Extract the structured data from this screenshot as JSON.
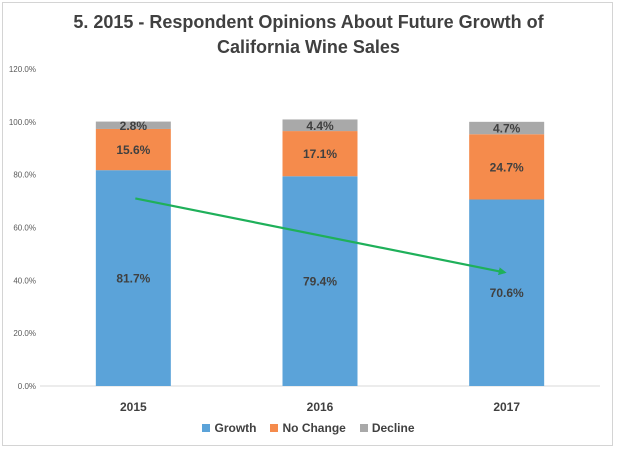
{
  "chart_data": {
    "type": "bar",
    "stacked": true,
    "title": "5.  2015 - Respondent Opinions About Future Growth of California Wine Sales",
    "title_lines": [
      "5.  2015 - Respondent Opinions About Future Growth of",
      "California Wine Sales"
    ],
    "categories": [
      "2015",
      "2016",
      "2017"
    ],
    "series": [
      {
        "name": "Growth",
        "values": [
          81.7,
          79.4,
          70.6
        ],
        "color": "#5ba3d9",
        "labels": [
          "81.7%",
          "79.4%",
          "70.6%"
        ]
      },
      {
        "name": "No Change",
        "values": [
          15.6,
          17.1,
          24.7
        ],
        "color": "#f58b4c",
        "labels": [
          "15.6%",
          "17.1%",
          "24.7%"
        ]
      },
      {
        "name": "Decline",
        "values": [
          2.8,
          4.4,
          4.7
        ],
        "color": "#a9a9a9",
        "labels": [
          "2.8%",
          "4.4%",
          "4.7%"
        ]
      }
    ],
    "ylim": [
      0,
      120
    ],
    "yticks": [
      0,
      20,
      40,
      60,
      80,
      100,
      120
    ],
    "ytick_labels": [
      "0.0%",
      "20.0%",
      "40.0%",
      "60.0%",
      "80.0%",
      "100.0%",
      "120.0%"
    ],
    "xlabel": "",
    "ylabel": "",
    "grid": false,
    "legend_position": "bottom",
    "annotation": {
      "type": "trend-arrow",
      "from": {
        "category": "2015",
        "value": 71
      },
      "to": {
        "category": "2017",
        "value": 43
      },
      "color": "#1fb05a"
    }
  }
}
